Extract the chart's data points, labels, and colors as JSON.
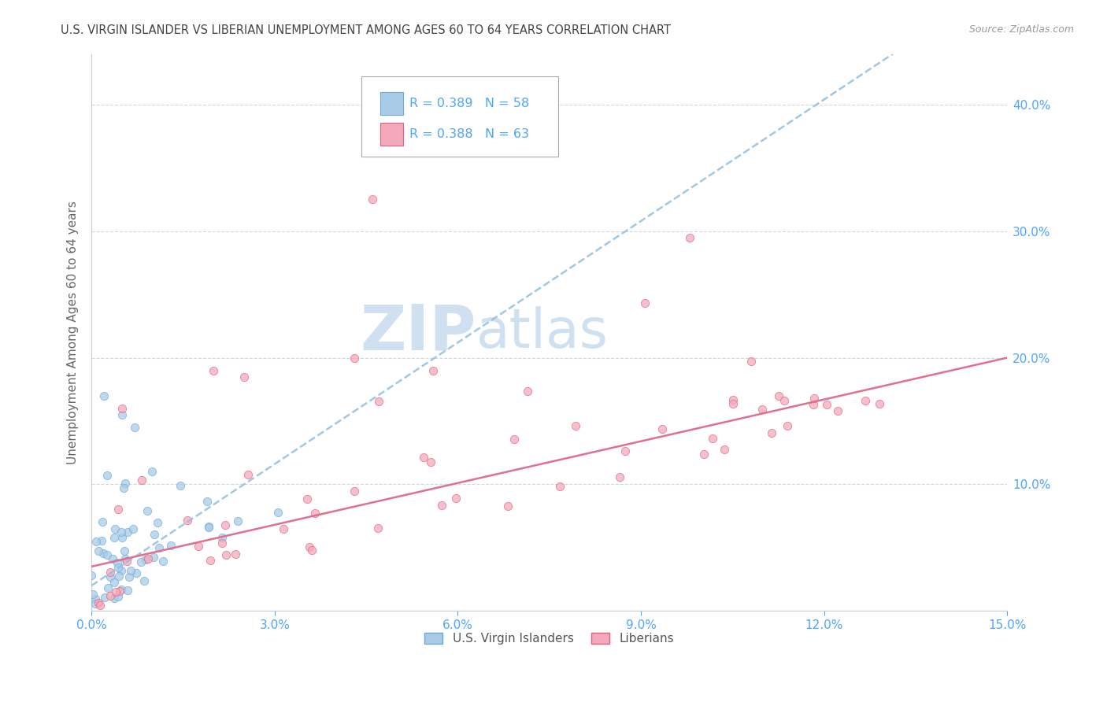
{
  "title": "U.S. VIRGIN ISLANDER VS LIBERIAN UNEMPLOYMENT AMONG AGES 60 TO 64 YEARS CORRELATION CHART",
  "source": "Source: ZipAtlas.com",
  "ylabel": "Unemployment Among Ages 60 to 64 years",
  "xlim": [
    0.0,
    0.15
  ],
  "ylim": [
    0.0,
    0.44
  ],
  "xtick_vals": [
    0.0,
    0.03,
    0.06,
    0.09,
    0.12,
    0.15
  ],
  "xtick_labels": [
    "0.0%",
    "3.0%",
    "6.0%",
    "9.0%",
    "12.0%",
    "15.0%"
  ],
  "ytick_vals": [
    0.0,
    0.1,
    0.2,
    0.3,
    0.4
  ],
  "ytick_labels": [
    "",
    "10.0%",
    "20.0%",
    "30.0%",
    "40.0%"
  ],
  "title_color": "#444444",
  "axis_tick_color": "#4da6ff",
  "grid_color": "#cccccc",
  "watermark_zip": "ZIP",
  "watermark_atlas": "atlas",
  "watermark_color": "#cfe0f0",
  "legend_line1": "R = 0.389   N = 58",
  "legend_line2": "R = 0.388   N = 63",
  "legend_color": "#4da6ff",
  "vi_face_color": "#a8cce8",
  "vi_edge_color": "#6aaad4",
  "lib_face_color": "#f5a8bc",
  "lib_edge_color": "#e06080",
  "vi_trend_color": "#90bfe0",
  "lib_trend_color": "#e07090",
  "ylabel_color": "#666666",
  "source_color": "#999999",
  "legend_text_color": "#4da6ff"
}
